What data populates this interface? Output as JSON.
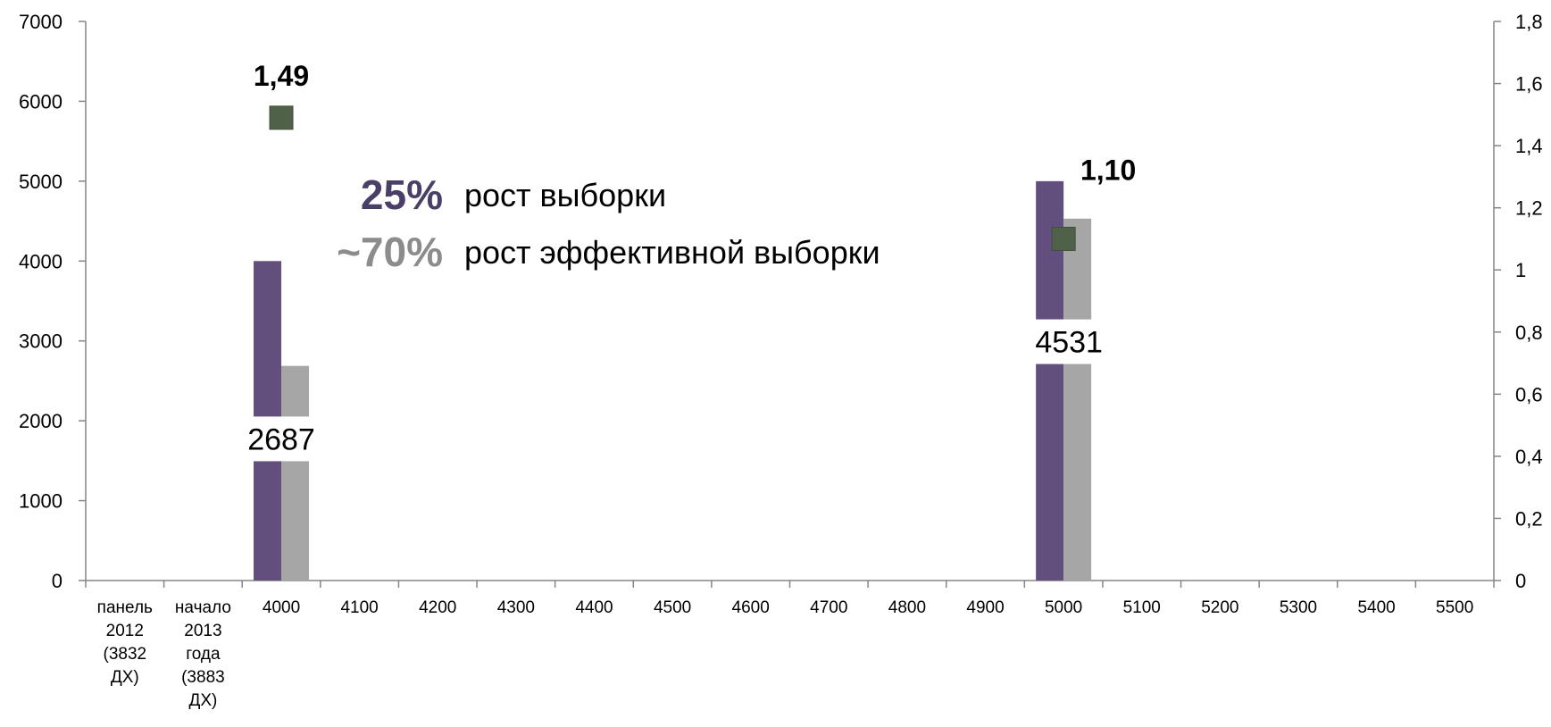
{
  "chart_data": {
    "type": "bar",
    "categories": [
      "панель 2012 (3832 ДХ)",
      "начало 2013 года (3883 ДХ)",
      "4000",
      "4100",
      "4200",
      "4300",
      "4400",
      "4500",
      "4600",
      "4700",
      "4800",
      "4900",
      "5000",
      "5100",
      "5200",
      "5300",
      "5400",
      "5500"
    ],
    "series": [
      {
        "values": [
          null,
          null,
          4000,
          null,
          null,
          null,
          null,
          null,
          null,
          null,
          null,
          null,
          5000,
          null,
          null,
          null,
          null,
          null
        ],
        "color": "#634f7d",
        "axis": "left"
      },
      {
        "values": [
          null,
          null,
          2687,
          null,
          null,
          null,
          null,
          null,
          null,
          null,
          null,
          null,
          4531,
          null,
          null,
          null,
          null,
          null
        ],
        "color": "#a6a6a6",
        "axis": "left",
        "data_labels": [
          "",
          "",
          "2687",
          "",
          "",
          "",
          "",
          "",
          "",
          "",
          "",
          "",
          "4531",
          "",
          "",
          "",
          "",
          ""
        ]
      },
      {
        "type": "scatter",
        "values": [
          null,
          null,
          1.49,
          null,
          null,
          null,
          null,
          null,
          null,
          null,
          null,
          null,
          1.1,
          null,
          null,
          null,
          null,
          null
        ],
        "color": "#4f6148",
        "axis": "right",
        "data_labels": [
          "",
          "",
          "1,49",
          "",
          "",
          "",
          "",
          "",
          "",
          "",
          "",
          "",
          "1,10",
          "",
          "",
          "",
          "",
          ""
        ]
      }
    ],
    "y_left": {
      "lim": [
        0,
        7000
      ],
      "ticks": [
        "0",
        "1000",
        "2000",
        "3000",
        "4000",
        "5000",
        "6000",
        "7000"
      ]
    },
    "y_right": {
      "lim": [
        0,
        1.8
      ],
      "ticks": [
        "0",
        "0,2",
        "0,4",
        "0,6",
        "0,8",
        "1",
        "1,2",
        "1,4",
        "1,6",
        "1,8"
      ]
    },
    "title": "",
    "xlabel": "",
    "ylabel": "",
    "grid": false,
    "annotations": [
      {
        "value": "25%",
        "text": "рост выборки",
        "color": "#4a3f66"
      },
      {
        "value": "~70%",
        "text": "рост эффективной выборки",
        "color": "#8c8c8c"
      }
    ]
  }
}
